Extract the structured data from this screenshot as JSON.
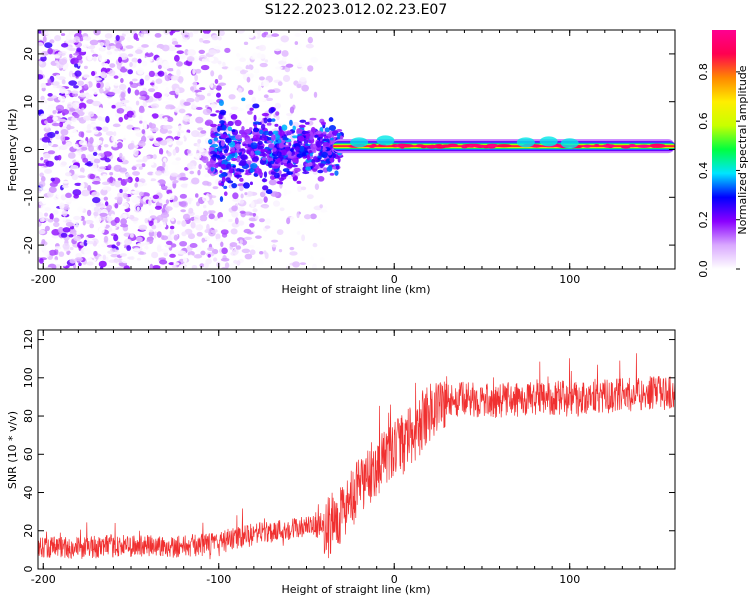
{
  "title": "S122.2023.012.02.23.E07",
  "chart_data": [
    {
      "type": "heatmap",
      "xlabel": "Height of straight line (km)",
      "ylabel": "Frequency (Hz)",
      "xlim": [
        -203,
        160
      ],
      "ylim": [
        -25,
        25
      ],
      "xticks": [
        -200,
        -100,
        0,
        100
      ],
      "xtick_labels": [
        "-200",
        "-100",
        "0",
        "100"
      ],
      "yticks": [
        -20,
        -10,
        0,
        10,
        20
      ],
      "ytick_labels": [
        "-20",
        "-10",
        "0",
        "10",
        "20"
      ],
      "colorbar": {
        "label": "Normalized spectral amplitude",
        "range": [
          0,
          0.97
        ],
        "ticks": [
          0.0,
          0.2,
          0.4,
          0.6,
          0.8
        ],
        "tick_labels": [
          "0.0",
          "0.2",
          "0.4",
          "0.6",
          "0.8"
        ],
        "colors": [
          "#ffffff",
          "#d9a8ff",
          "#8a00ff",
          "#0000ff",
          "#00e5ff",
          "#00ff40",
          "#c8ff00",
          "#ffee00",
          "#ff8800",
          "#ff0050",
          "#ff0090"
        ]
      },
      "carrier": {
        "start_km": -35,
        "end_km": 160,
        "freq_hz": 0.7,
        "peak_amplitude": 0.95
      },
      "noise_region": {
        "start_km": -203,
        "end_km": -40
      },
      "transition_region": {
        "start_km": -105,
        "end_km": -30,
        "freq_spread_hz": 10
      }
    },
    {
      "type": "line",
      "xlabel": "Height of straight line (km)",
      "ylabel": "SNR (10 * v/v)",
      "xlim": [
        -203,
        160
      ],
      "ylim": [
        0,
        125
      ],
      "xticks": [
        -200,
        -100,
        0,
        100
      ],
      "xtick_labels": [
        "-200",
        "-100",
        "0",
        "100"
      ],
      "yticks": [
        0,
        20,
        40,
        60,
        80,
        100,
        120
      ],
      "ytick_labels": [
        "0",
        "20",
        "40",
        "60",
        "80",
        "100",
        "120"
      ],
      "line_color": "#f03030",
      "series": [
        {
          "name": "SNR",
          "x": [
            -203,
            -180,
            -160,
            -140,
            -120,
            -105,
            -90,
            -75,
            -60,
            -45,
            -35,
            -30,
            -25,
            -20,
            -15,
            -10,
            -5,
            0,
            5,
            10,
            15,
            20,
            25,
            30,
            40,
            50,
            60,
            80,
            100,
            110,
            113,
            116,
            130,
            145,
            160
          ],
          "y": [
            12,
            11,
            12,
            12,
            12,
            13,
            16,
            19,
            21,
            22,
            24,
            30,
            35,
            42,
            48,
            54,
            58,
            62,
            65,
            70,
            76,
            82,
            86,
            88,
            89,
            88,
            88,
            89,
            90,
            89,
            92,
            90,
            91,
            92,
            92
          ]
        }
      ]
    }
  ]
}
